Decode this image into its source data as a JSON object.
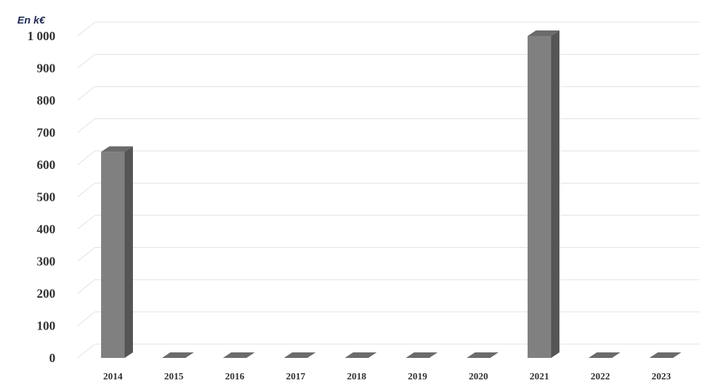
{
  "chart_data": {
    "type": "bar",
    "title": "En k€",
    "categories": [
      "2014",
      "2015",
      "2016",
      "2017",
      "2018",
      "2019",
      "2020",
      "2021",
      "2022",
      "2023"
    ],
    "values": [
      640,
      0,
      0,
      0,
      0,
      0,
      0,
      1000,
      0,
      0
    ],
    "color": "#808080",
    "ylim": [
      0,
      1000
    ],
    "yticks": [
      0,
      100,
      200,
      300,
      400,
      500,
      600,
      700,
      800,
      900,
      {
        "value": 1000,
        "label": "1 000"
      }
    ],
    "grid": true
  }
}
